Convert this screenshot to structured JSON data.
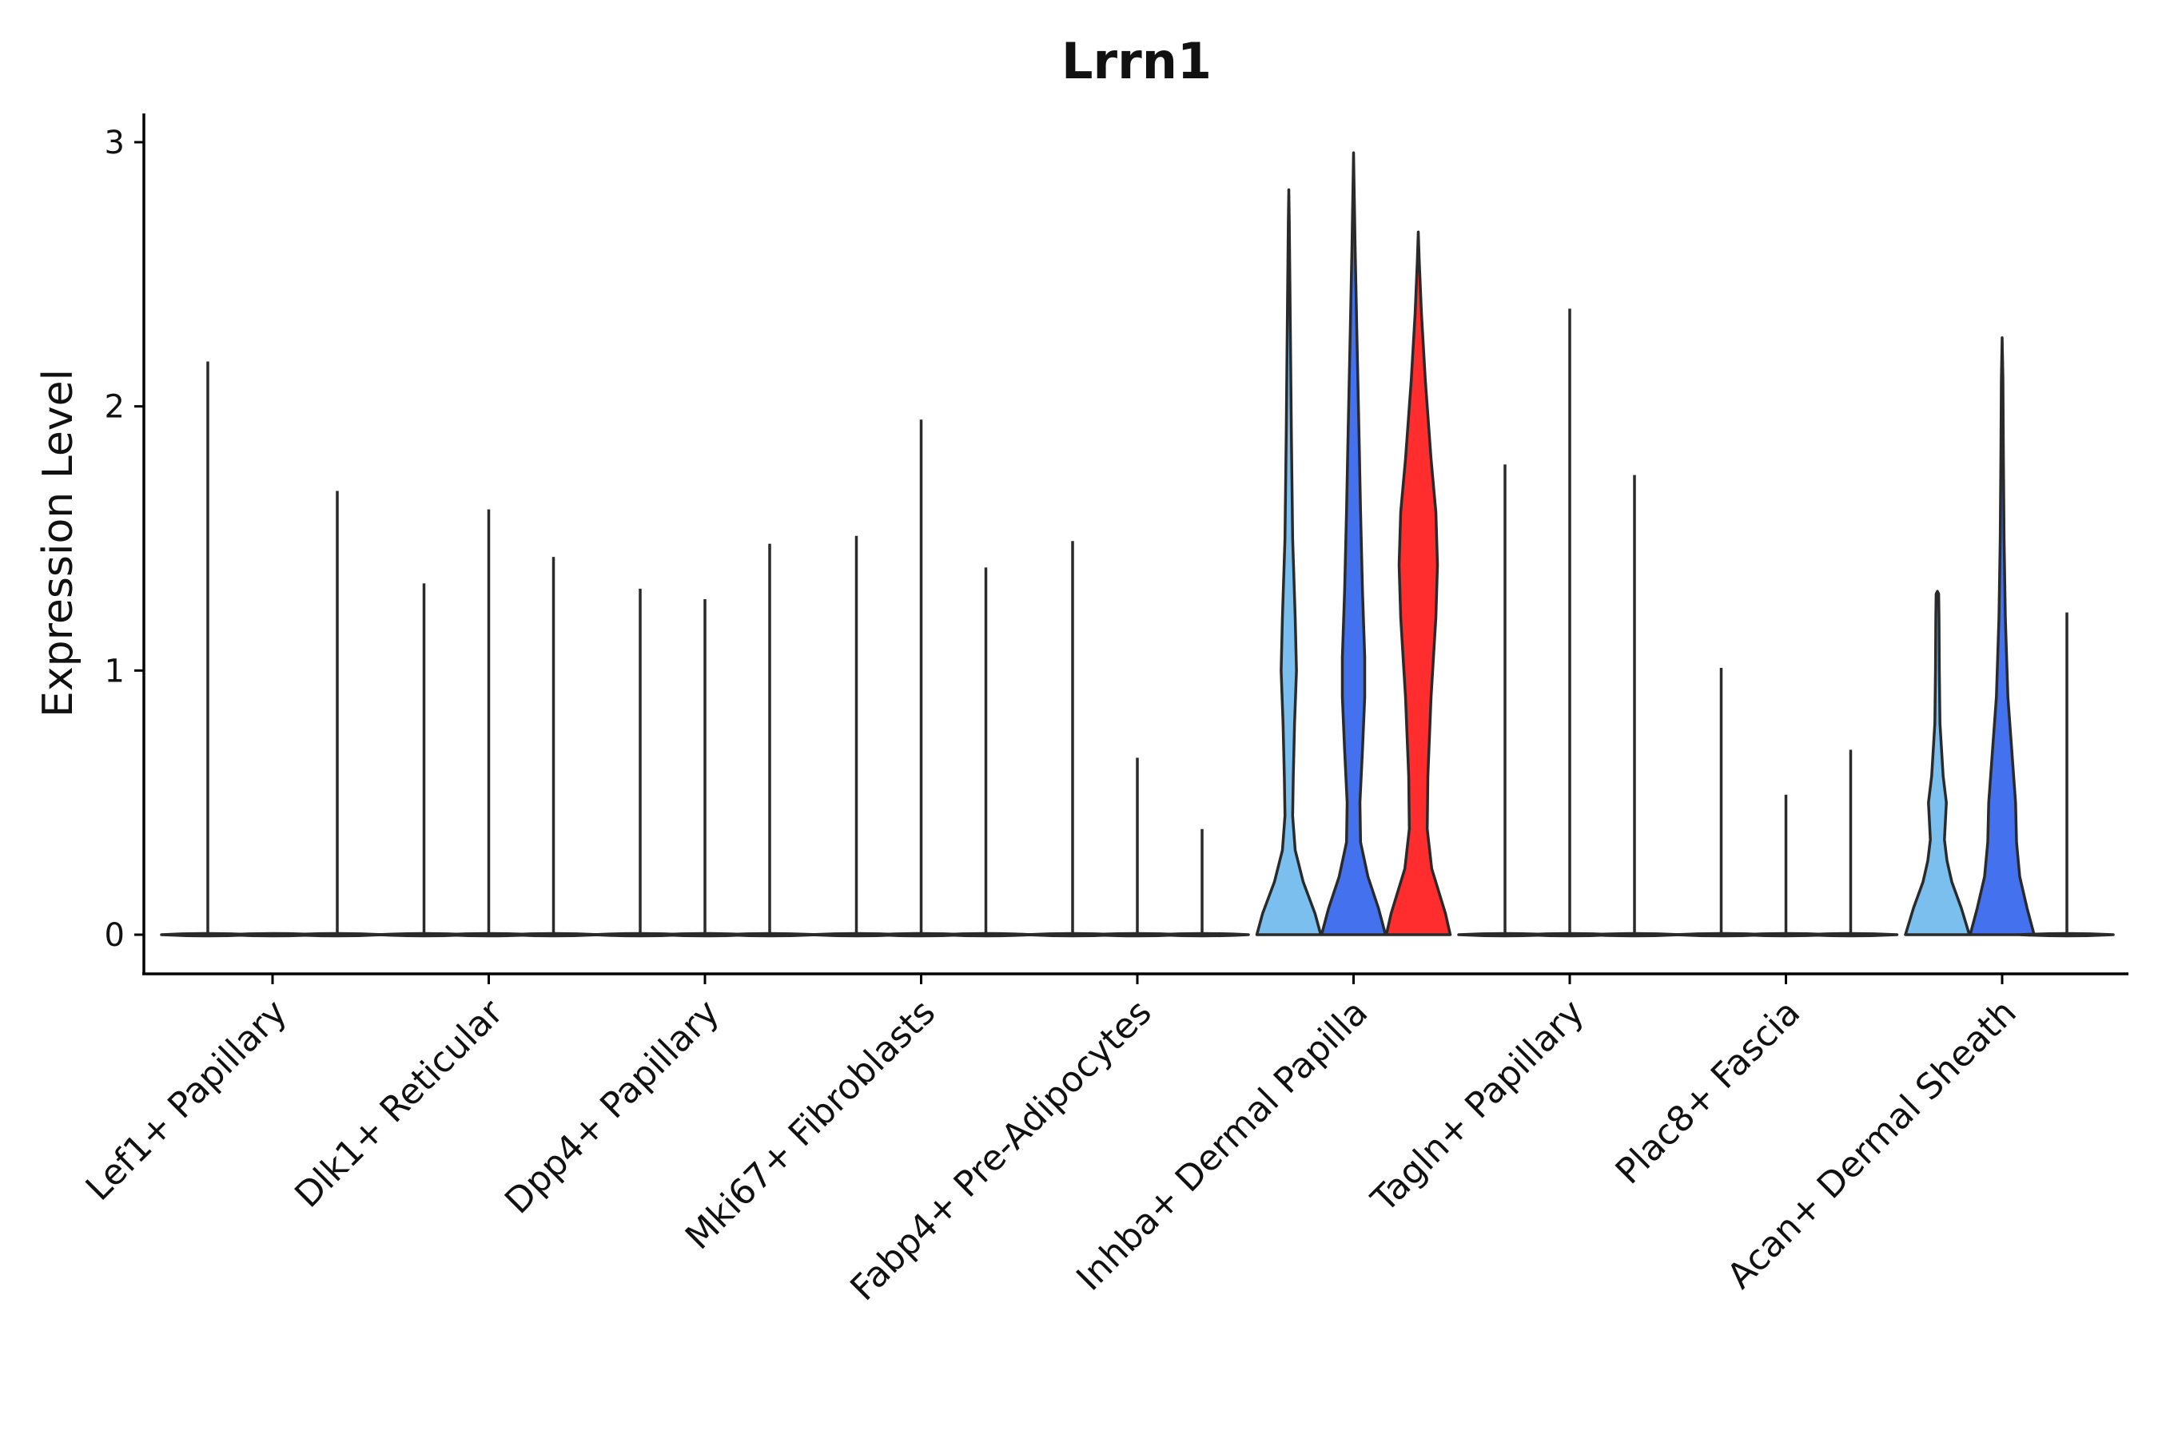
{
  "chart_data": {
    "type": "violin",
    "title": "Lrrn1",
    "xlabel": "",
    "ylabel": "Expression Level",
    "ylim": [
      -0.15,
      3.1
    ],
    "yticks": [
      0,
      1,
      2,
      3
    ],
    "grid": false,
    "legend": "none",
    "colors": {
      "light": "#7ABFEE",
      "mid": "#4471EE",
      "red": "#FF2D2D",
      "outline": "#2a2a2a"
    },
    "series_per_category": 3,
    "categories": [
      "Lef1+ Papillary",
      "Dlk1+ Reticular",
      "Dpp4+ Papillary",
      "Mki67+ Fibroblasts",
      "Fabp4+ Pre-Adipocytes",
      "Inhba+ Dermal Papilla",
      "Tagln+ Papillary",
      "Plac8+ Fascia",
      "Acan+ Dermal Sheath"
    ],
    "violins": [
      [
        {
          "max": 2.17,
          "color": "light",
          "profile": null
        },
        {
          "max": 0.0,
          "color": "mid",
          "profile": null
        },
        {
          "max": 1.68,
          "color": "red",
          "profile": null
        }
      ],
      [
        {
          "max": 1.33,
          "color": "light",
          "profile": null
        },
        {
          "max": 1.61,
          "color": "mid",
          "profile": null
        },
        {
          "max": 1.43,
          "color": "red",
          "profile": null
        }
      ],
      [
        {
          "max": 1.31,
          "color": "light",
          "profile": null
        },
        {
          "max": 1.27,
          "color": "mid",
          "profile": null
        },
        {
          "max": 1.48,
          "color": "red",
          "profile": null
        }
      ],
      [
        {
          "max": 1.51,
          "color": "light",
          "profile": null
        },
        {
          "max": 1.95,
          "color": "mid",
          "profile": null
        },
        {
          "max": 1.39,
          "color": "red",
          "profile": null
        }
      ],
      [
        {
          "max": 1.49,
          "color": "light",
          "profile": null
        },
        {
          "max": 0.67,
          "color": "mid",
          "profile": null
        },
        {
          "max": 0.4,
          "color": "red",
          "profile": null
        }
      ],
      [
        {
          "max": 2.82,
          "color": "light",
          "profile": [
            [
              0,
              1.0
            ],
            [
              0.08,
              0.82
            ],
            [
              0.2,
              0.45
            ],
            [
              0.32,
              0.2
            ],
            [
              0.45,
              0.12
            ],
            [
              0.6,
              0.14
            ],
            [
              0.8,
              0.18
            ],
            [
              1.0,
              0.24
            ],
            [
              1.2,
              0.2
            ],
            [
              1.5,
              0.12
            ],
            [
              1.9,
              0.08
            ],
            [
              2.4,
              0.04
            ],
            [
              2.7,
              0.015
            ],
            [
              2.82,
              0
            ]
          ]
        },
        {
          "max": 2.96,
          "color": "mid",
          "profile": [
            [
              0,
              1.0
            ],
            [
              0.1,
              0.78
            ],
            [
              0.22,
              0.45
            ],
            [
              0.35,
              0.22
            ],
            [
              0.5,
              0.2
            ],
            [
              0.7,
              0.28
            ],
            [
              0.9,
              0.35
            ],
            [
              1.05,
              0.35
            ],
            [
              1.3,
              0.28
            ],
            [
              1.6,
              0.22
            ],
            [
              1.9,
              0.17
            ],
            [
              2.3,
              0.1
            ],
            [
              2.6,
              0.05
            ],
            [
              2.85,
              0.015
            ],
            [
              2.96,
              0
            ]
          ]
        },
        {
          "max": 2.66,
          "color": "red",
          "profile": [
            [
              0,
              1.0
            ],
            [
              0.08,
              0.85
            ],
            [
              0.25,
              0.42
            ],
            [
              0.4,
              0.28
            ],
            [
              0.6,
              0.3
            ],
            [
              0.9,
              0.4
            ],
            [
              1.2,
              0.55
            ],
            [
              1.4,
              0.6
            ],
            [
              1.6,
              0.55
            ],
            [
              1.8,
              0.4
            ],
            [
              2.1,
              0.22
            ],
            [
              2.35,
              0.1
            ],
            [
              2.55,
              0.03
            ],
            [
              2.66,
              0
            ]
          ]
        }
      ],
      [
        {
          "max": 1.78,
          "color": "light",
          "profile": null
        },
        {
          "max": 2.37,
          "color": "mid",
          "profile": null
        },
        {
          "max": 1.74,
          "color": "red",
          "profile": null
        }
      ],
      [
        {
          "max": 1.01,
          "color": "light",
          "profile": null
        },
        {
          "max": 0.53,
          "color": "mid",
          "profile": null
        },
        {
          "max": 0.7,
          "color": "red",
          "profile": null
        }
      ],
      [
        {
          "max": 1.3,
          "color": "light",
          "profile": [
            [
              0,
              1.0
            ],
            [
              0.1,
              0.75
            ],
            [
              0.2,
              0.45
            ],
            [
              0.28,
              0.3
            ],
            [
              0.36,
              0.22
            ],
            [
              0.5,
              0.28
            ],
            [
              0.6,
              0.18
            ],
            [
              0.8,
              0.08
            ],
            [
              1.0,
              0.06
            ],
            [
              1.2,
              0.05
            ],
            [
              1.29,
              0.04
            ],
            [
              1.3,
              0
            ]
          ]
        },
        {
          "max": 2.26,
          "color": "mid",
          "profile": [
            [
              0,
              1.0
            ],
            [
              0.1,
              0.78
            ],
            [
              0.22,
              0.55
            ],
            [
              0.35,
              0.45
            ],
            [
              0.5,
              0.42
            ],
            [
              0.7,
              0.3
            ],
            [
              0.9,
              0.18
            ],
            [
              1.2,
              0.1
            ],
            [
              1.5,
              0.06
            ],
            [
              1.8,
              0.04
            ],
            [
              2.1,
              0.025
            ],
            [
              2.26,
              0
            ]
          ]
        },
        {
          "max": 1.22,
          "color": "red",
          "profile": null
        }
      ]
    ]
  }
}
